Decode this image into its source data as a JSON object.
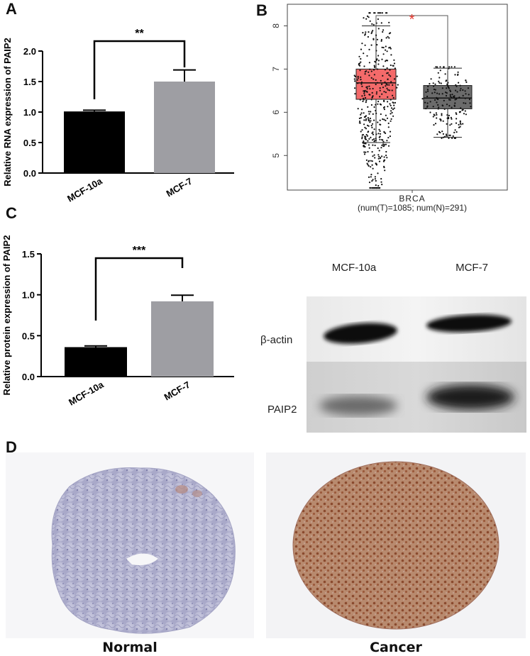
{
  "panels": {
    "a": {
      "letter": "A"
    },
    "b": {
      "letter": "B"
    },
    "c": {
      "letter": "C"
    },
    "d": {
      "letter": "D"
    }
  },
  "chart_data": [
    {
      "panel": "A",
      "type": "bar",
      "categories": [
        "MCF-10a",
        "MCF-7"
      ],
      "values": [
        1.01,
        1.5
      ],
      "errors": [
        0.02,
        0.19
      ],
      "colors": [
        "#000000",
        "#9e9ea3"
      ],
      "ylabel": "Relative RNA expression of PAIP2",
      "xlabel": "",
      "ylim": [
        0,
        2.0
      ],
      "yticks": [
        "0.0",
        "0.5",
        "1.0",
        "1.5",
        "2.0"
      ],
      "significance": "**"
    },
    {
      "panel": "B",
      "type": "box",
      "groups": [
        {
          "color": "#f46a6a",
          "q1": 6.3,
          "median": 6.68,
          "q3": 7.0,
          "whisker_low": 5.3,
          "whisker_high": 8.0,
          "min": 4.25,
          "max": 8.3,
          "n": 1085
        },
        {
          "color": "#6b6b6b",
          "q1": 6.08,
          "median": 6.33,
          "q3": 6.62,
          "whisker_low": 5.42,
          "whisker_high": 7.02,
          "min": 5.4,
          "max": 7.05,
          "n": 291
        }
      ],
      "xlabel_line1": "BRCA",
      "xlabel_line2": "(num(T)=1085; num(N)=291)",
      "ylim": [
        4.2,
        8.5
      ],
      "yticks": [
        "5",
        "6",
        "7",
        "8"
      ],
      "significance": "*",
      "significance_color": "#e8392f"
    },
    {
      "panel": "C",
      "type": "bar",
      "categories": [
        "MCF-10a",
        "MCF-7"
      ],
      "values": [
        0.36,
        0.92
      ],
      "errors": [
        0.015,
        0.075
      ],
      "colors": [
        "#000000",
        "#9e9ea3"
      ],
      "ylabel": "Relative protein expression of PAIP2",
      "xlabel": "",
      "ylim": [
        0,
        1.5
      ],
      "yticks": [
        "0.0",
        "0.5",
        "1.0",
        "1.5"
      ],
      "significance": "***"
    }
  ],
  "western_blot": {
    "lanes": [
      "MCF-10a",
      "MCF-7"
    ],
    "rows": [
      "β-actin",
      "PAIP2"
    ]
  },
  "ihc": {
    "left_label": "Normal",
    "right_label": "Cancer"
  }
}
